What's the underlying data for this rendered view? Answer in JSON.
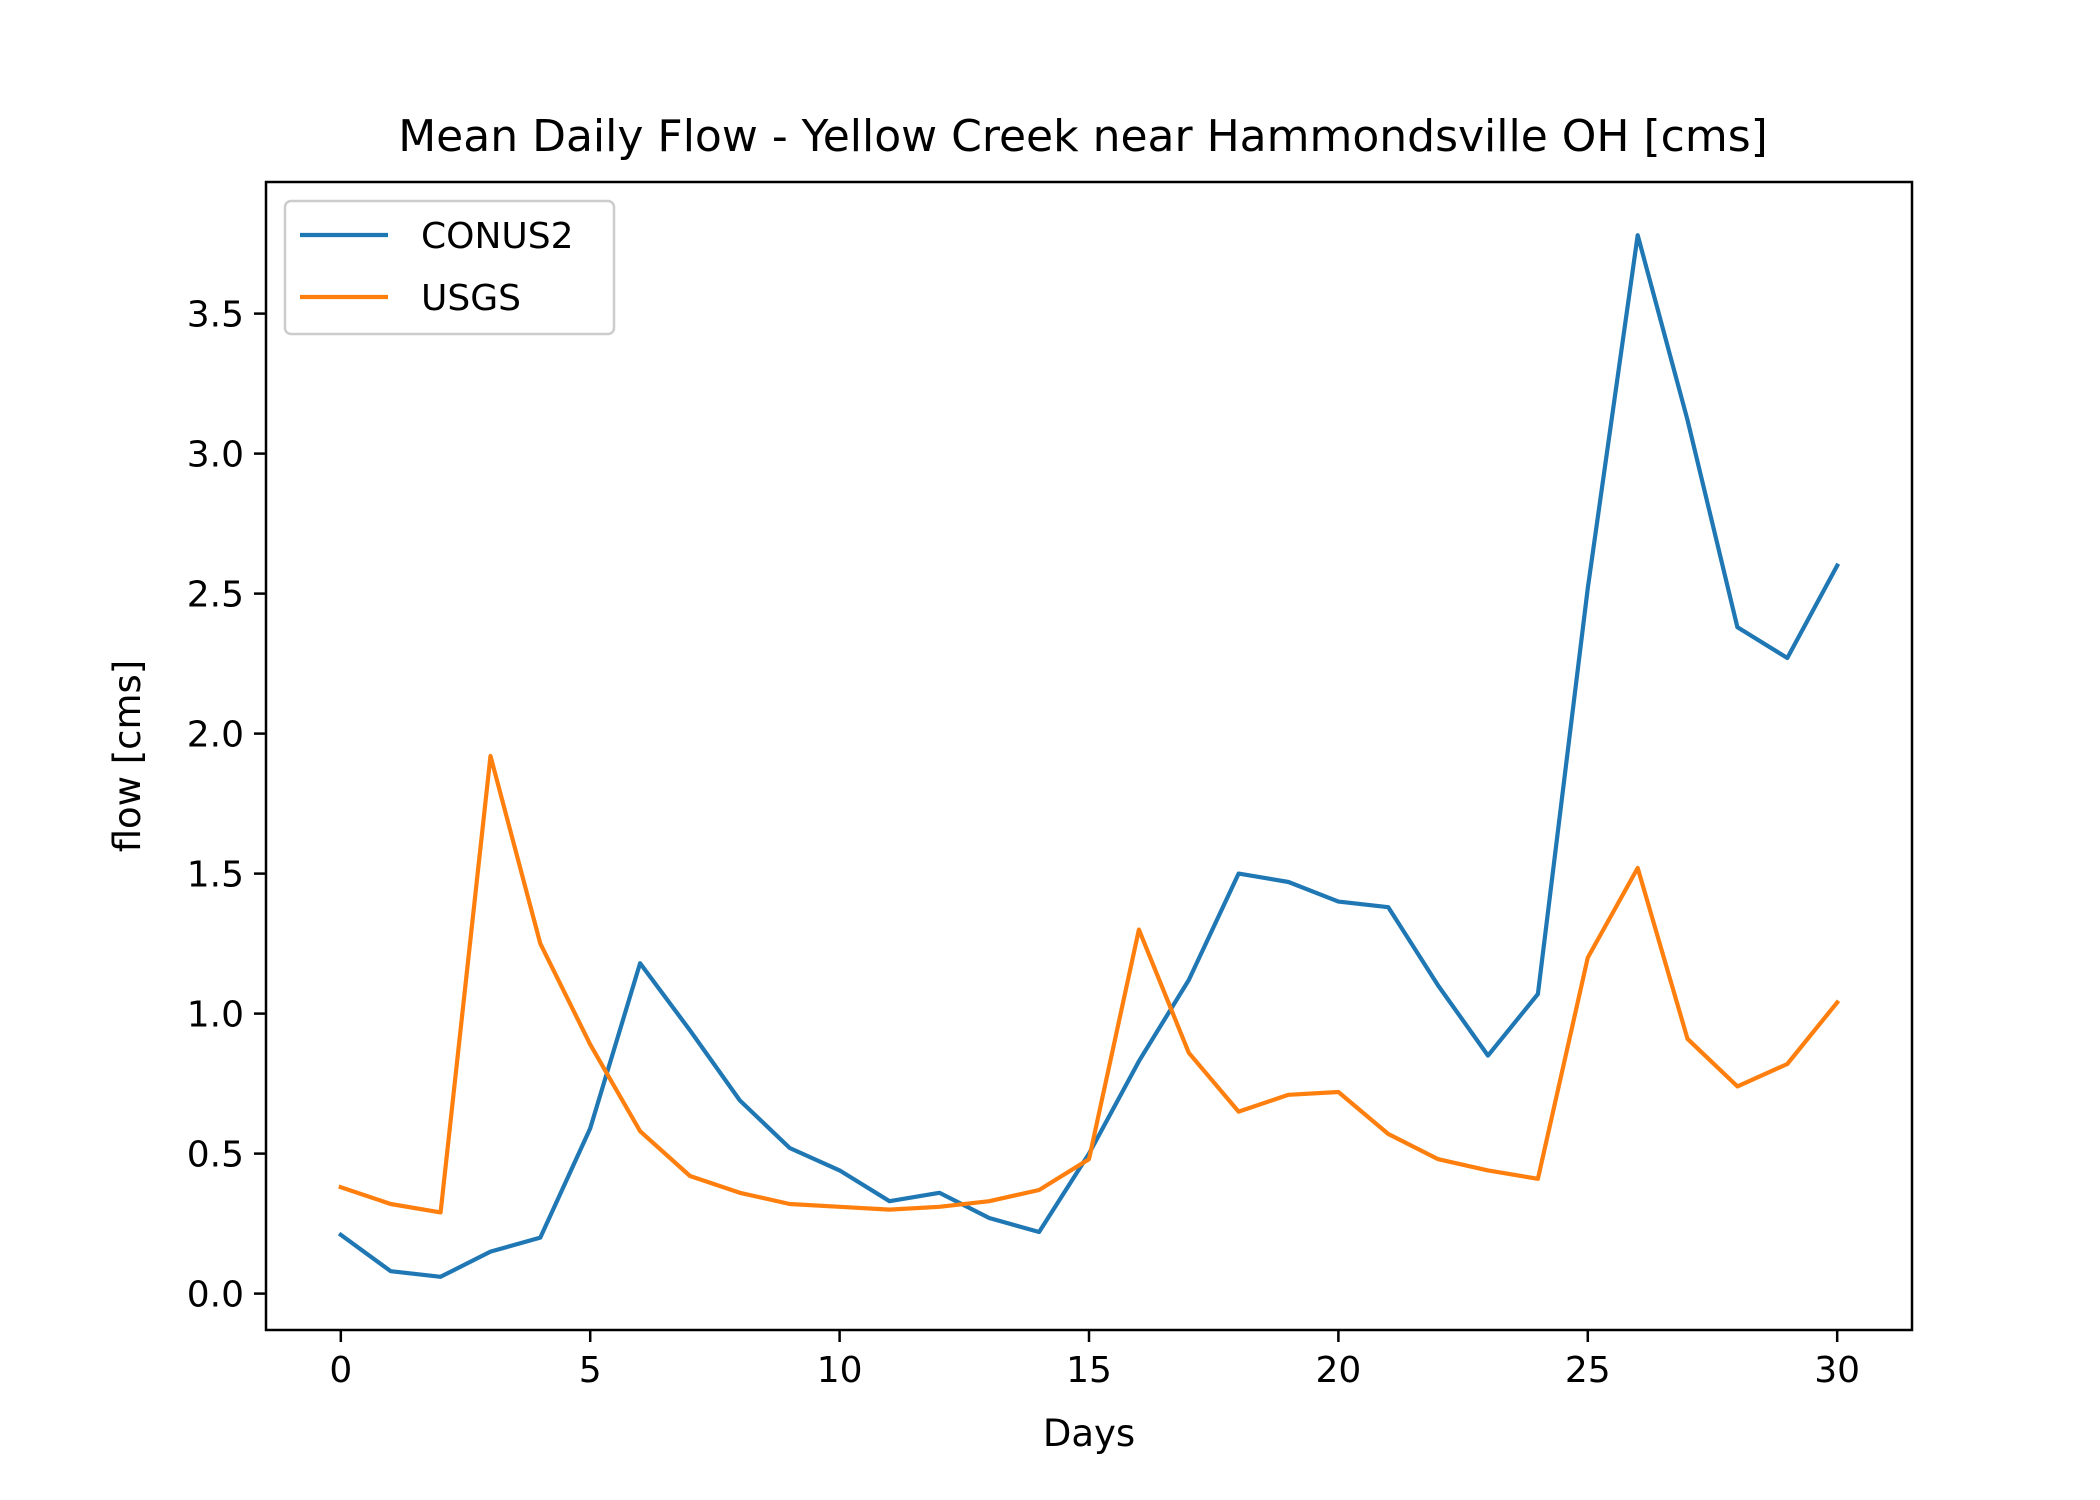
{
  "chart_data": {
    "type": "line",
    "title": "Mean Daily Flow - Yellow Creek near Hammondsville OH [cms]",
    "xlabel": "Days",
    "ylabel": "flow [cms]",
    "xlim": [
      -1.5,
      31.5
    ],
    "ylim": [
      -0.13,
      3.97
    ],
    "xticks": [
      0,
      5,
      10,
      15,
      20,
      25,
      30
    ],
    "yticks": [
      0.0,
      0.5,
      1.0,
      1.5,
      2.0,
      2.5,
      3.0,
      3.5
    ],
    "grid": false,
    "legend_position": "upper-left",
    "x": [
      0,
      1,
      2,
      3,
      4,
      5,
      6,
      7,
      8,
      9,
      10,
      11,
      12,
      13,
      14,
      15,
      16,
      17,
      18,
      19,
      20,
      21,
      22,
      23,
      24,
      25,
      26,
      27,
      28,
      29,
      30
    ],
    "series": [
      {
        "name": "CONUS2",
        "color": "#1f77b4",
        "values": [
          0.21,
          0.08,
          0.06,
          0.15,
          0.2,
          0.59,
          1.18,
          0.94,
          0.69,
          0.52,
          0.44,
          0.33,
          0.36,
          0.27,
          0.22,
          0.5,
          0.83,
          1.12,
          1.5,
          1.47,
          1.4,
          1.38,
          1.1,
          0.85,
          1.07,
          2.52,
          3.78,
          3.12,
          2.38,
          2.27,
          2.6
        ]
      },
      {
        "name": "USGS",
        "color": "#ff7f0e",
        "values": [
          0.38,
          0.32,
          0.29,
          1.92,
          1.25,
          0.89,
          0.58,
          0.42,
          0.36,
          0.32,
          0.31,
          0.3,
          0.31,
          0.33,
          0.37,
          0.48,
          1.3,
          0.86,
          0.65,
          0.71,
          0.72,
          0.57,
          0.48,
          0.44,
          0.41,
          1.2,
          1.52,
          0.91,
          0.74,
          0.82,
          1.04
        ]
      }
    ]
  }
}
